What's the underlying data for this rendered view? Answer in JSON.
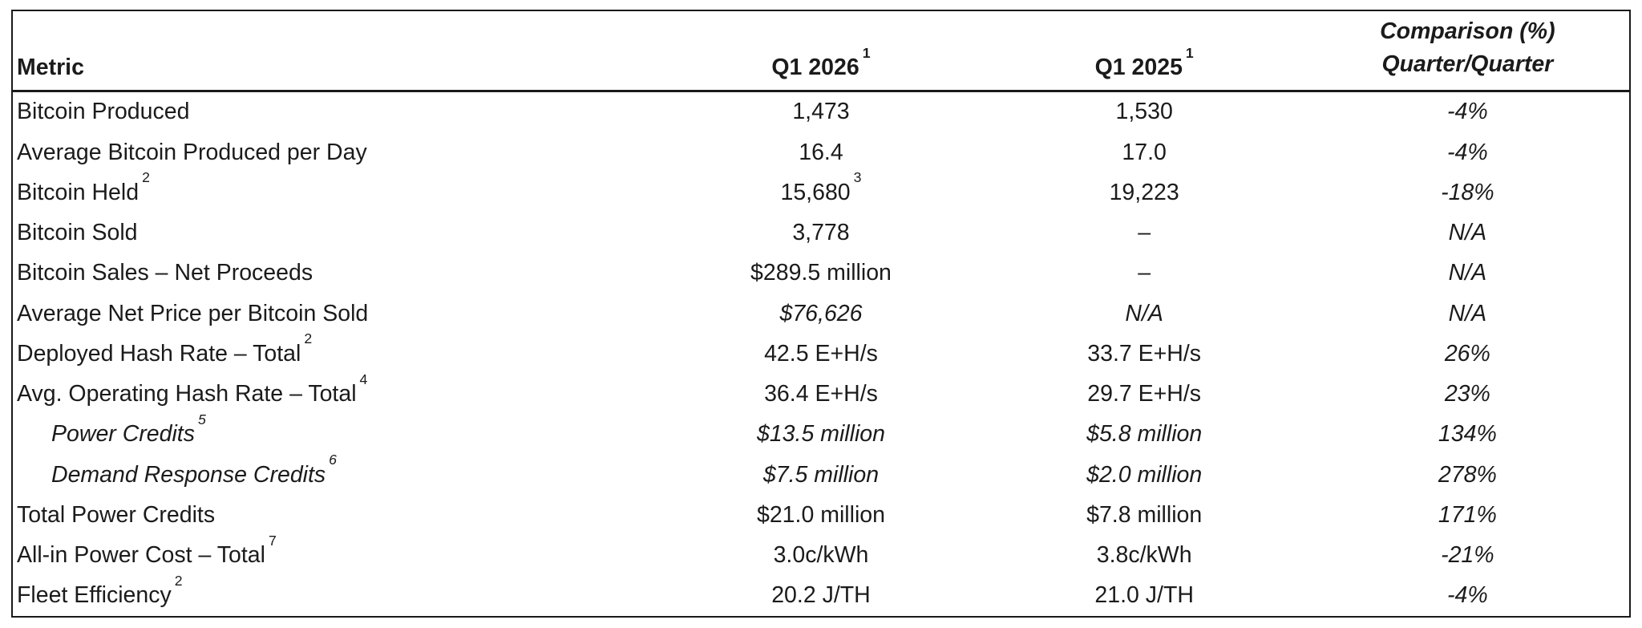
{
  "page": {
    "background": "#ffffff",
    "text_color": "#1b1b1b",
    "border_color": "#1a1a1a"
  },
  "table": {
    "header": {
      "metric_label": "Metric",
      "q1_2026": {
        "label": "Q1 2026",
        "sup": "1"
      },
      "q1_2025": {
        "label": "Q1 2025",
        "sup": "1"
      },
      "comparison": {
        "line1": "Comparison (%)",
        "line2": "Quarter/Quarter"
      }
    },
    "rows": [
      {
        "metric": {
          "text": "Bitcoin Produced",
          "sup": "",
          "italic": false,
          "indent": false
        },
        "q1_2026": {
          "text": "1,473",
          "sup": "",
          "italic": false
        },
        "q1_2025": {
          "text": "1,530",
          "italic": false
        },
        "comparison": {
          "text": "-4%",
          "italic": true
        }
      },
      {
        "metric": {
          "text": "Average Bitcoin Produced per Day",
          "sup": "",
          "italic": false,
          "indent": false
        },
        "q1_2026": {
          "text": "16.4",
          "sup": "",
          "italic": false
        },
        "q1_2025": {
          "text": "17.0",
          "italic": false
        },
        "comparison": {
          "text": "-4%",
          "italic": true
        }
      },
      {
        "metric": {
          "text": "Bitcoin Held",
          "sup": "2",
          "italic": false,
          "indent": false
        },
        "q1_2026": {
          "text": "15,680",
          "sup": "3",
          "italic": false
        },
        "q1_2025": {
          "text": "19,223",
          "italic": false
        },
        "comparison": {
          "text": "-18%",
          "italic": true
        }
      },
      {
        "metric": {
          "text": "Bitcoin Sold",
          "sup": "",
          "italic": false,
          "indent": false
        },
        "q1_2026": {
          "text": "3,778",
          "sup": "",
          "italic": false
        },
        "q1_2025": {
          "text": "–",
          "italic": false
        },
        "comparison": {
          "text": "N/A",
          "italic": true
        }
      },
      {
        "metric": {
          "text": "Bitcoin Sales – Net Proceeds",
          "sup": "",
          "italic": false,
          "indent": false
        },
        "q1_2026": {
          "text": "$289.5 million",
          "sup": "",
          "italic": false
        },
        "q1_2025": {
          "text": "–",
          "italic": false
        },
        "comparison": {
          "text": "N/A",
          "italic": true
        }
      },
      {
        "metric": {
          "text": "Average Net Price per Bitcoin Sold",
          "sup": "",
          "italic": false,
          "indent": false
        },
        "q1_2026": {
          "text": "$76,626",
          "sup": "",
          "italic": true
        },
        "q1_2025": {
          "text": "N/A",
          "italic": true
        },
        "comparison": {
          "text": "N/A",
          "italic": true
        }
      },
      {
        "metric": {
          "text": "Deployed Hash Rate – Total",
          "sup": "2",
          "italic": false,
          "indent": false
        },
        "q1_2026": {
          "text": "42.5 E+H/s",
          "sup": "",
          "italic": false
        },
        "q1_2025": {
          "text": "33.7 E+H/s",
          "italic": false
        },
        "comparison": {
          "text": "26%",
          "italic": true
        }
      },
      {
        "metric": {
          "text": "Avg. Operating Hash Rate – Total",
          "sup": "4",
          "italic": false,
          "indent": false
        },
        "q1_2026": {
          "text": "36.4 E+H/s",
          "sup": "",
          "italic": false
        },
        "q1_2025": {
          "text": "29.7 E+H/s",
          "italic": false
        },
        "comparison": {
          "text": "23%",
          "italic": true
        }
      },
      {
        "metric": {
          "text": "Power Credits",
          "sup": "5",
          "italic": true,
          "indent": true
        },
        "q1_2026": {
          "text": "$13.5 million",
          "sup": "",
          "italic": true
        },
        "q1_2025": {
          "text": "$5.8 million",
          "italic": true
        },
        "comparison": {
          "text": "134%",
          "italic": true
        }
      },
      {
        "metric": {
          "text": "Demand Response Credits",
          "sup": "6",
          "italic": true,
          "indent": true
        },
        "q1_2026": {
          "text": "$7.5 million",
          "sup": "",
          "italic": true
        },
        "q1_2025": {
          "text": "$2.0 million",
          "italic": true
        },
        "comparison": {
          "text": "278%",
          "italic": true
        }
      },
      {
        "metric": {
          "text": "Total Power Credits",
          "sup": "",
          "italic": false,
          "indent": false
        },
        "q1_2026": {
          "text": "$21.0 million",
          "sup": "",
          "italic": false
        },
        "q1_2025": {
          "text": "$7.8 million",
          "italic": false
        },
        "comparison": {
          "text": "171%",
          "italic": true
        }
      },
      {
        "metric": {
          "text": "All-in Power Cost – Total",
          "sup": "7",
          "italic": false,
          "indent": false
        },
        "q1_2026": {
          "text": "3.0c/kWh",
          "sup": "",
          "italic": false
        },
        "q1_2025": {
          "text": "3.8c/kWh",
          "italic": false
        },
        "comparison": {
          "text": "-21%",
          "italic": true
        }
      },
      {
        "metric": {
          "text": "Fleet Efficiency",
          "sup": "2",
          "italic": false,
          "indent": false
        },
        "q1_2026": {
          "text": "20.2 J/TH",
          "sup": "",
          "italic": false
        },
        "q1_2025": {
          "text": "21.0 J/TH",
          "italic": false
        },
        "comparison": {
          "text": "-4%",
          "italic": true
        }
      }
    ]
  }
}
